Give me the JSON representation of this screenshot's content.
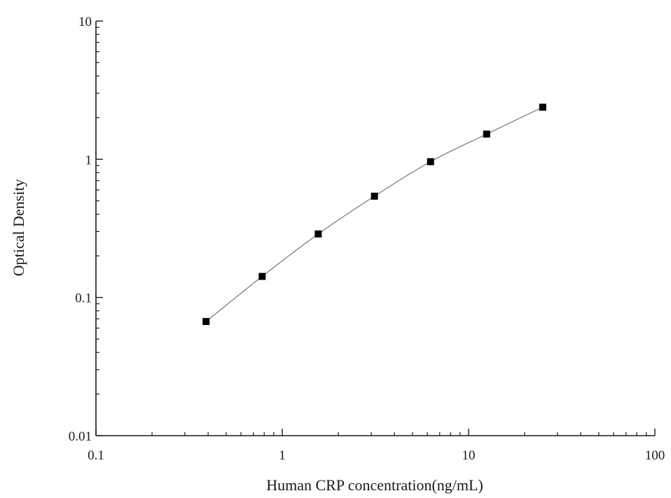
{
  "chart_data": {
    "type": "scatter",
    "title": "",
    "xlabel": "Human CRP concentration(ng/mL)",
    "ylabel": "Optical Density",
    "x_scale": "log",
    "y_scale": "log",
    "xlim": [
      0.1,
      100
    ],
    "ylim": [
      0.01,
      10
    ],
    "x_ticks": [
      {
        "value": 0.1,
        "label": "0.1"
      },
      {
        "value": 1,
        "label": "1"
      },
      {
        "value": 10,
        "label": "10"
      },
      {
        "value": 100,
        "label": "100"
      }
    ],
    "y_ticks": [
      {
        "value": 0.01,
        "label": "0.01"
      },
      {
        "value": 0.1,
        "label": "0.1"
      },
      {
        "value": 1,
        "label": "1"
      },
      {
        "value": 10,
        "label": "10"
      }
    ],
    "grid": false,
    "legend": "none",
    "series": [
      {
        "x": [
          0.39,
          0.78,
          1.56,
          3.125,
          6.25,
          12.5,
          25
        ],
        "y": [
          0.067,
          0.142,
          0.288,
          0.54,
          0.96,
          1.52,
          2.38
        ],
        "marker": "square",
        "fit_line": true
      }
    ],
    "colors": {
      "marker": "#000000",
      "fit_line": "#777777",
      "axis": "#1a1a1a"
    }
  }
}
